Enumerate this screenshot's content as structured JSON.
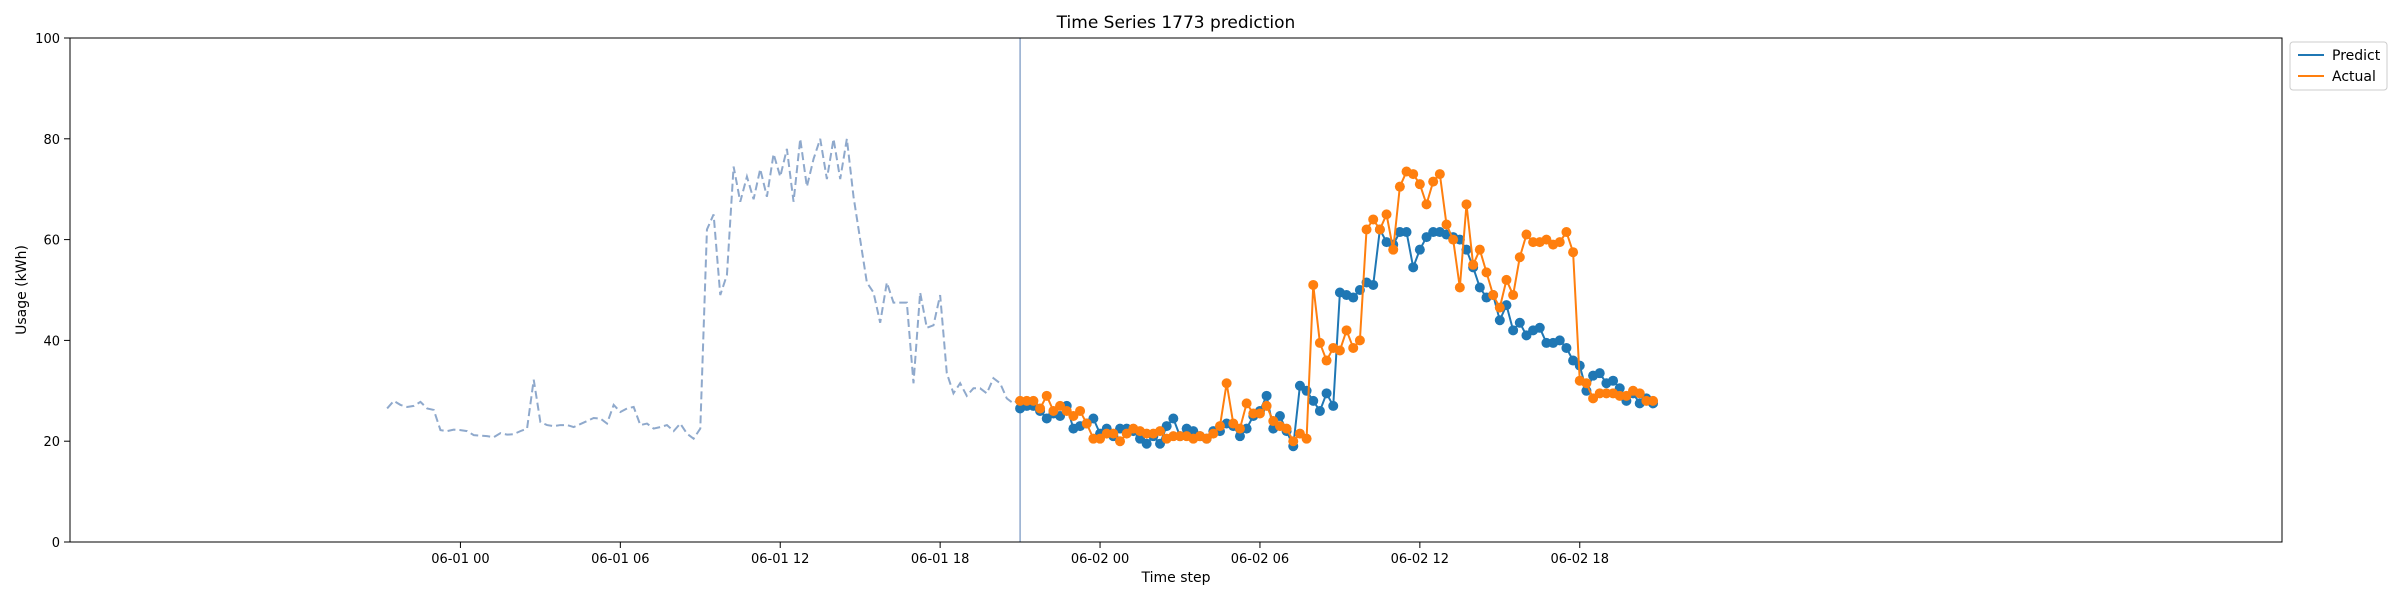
{
  "chart_data": {
    "type": "line",
    "title": "Time Series 1773 prediction",
    "xlabel": "Time step",
    "ylabel": "Usage (kWh)",
    "ylim": [
      0,
      100
    ],
    "yticks": [
      0,
      20,
      40,
      60,
      80,
      100
    ],
    "x_axis": {
      "type": "time",
      "step_hours": 0.25,
      "range_hours": [
        -14.65,
        68.35
      ],
      "tick_hours": [
        0,
        6,
        12,
        18,
        24,
        30,
        36,
        42
      ],
      "tick_labels": [
        "06-01 00",
        "06-01 06",
        "06-01 12",
        "06-01 18",
        "06-02 00",
        "06-02 06",
        "06-02 12",
        "06-02 18"
      ]
    },
    "grid": false,
    "legend_position": "outside-top-right",
    "forecast_start_hour": 21.0,
    "colors": {
      "history": "#8fa9cc",
      "predict": "#1f77b4",
      "actual": "#ff7f0e",
      "divider": "#8fa9cc"
    },
    "history": {
      "start_hour": -2.75,
      "values": [
        26.5,
        28,
        27.2,
        26.8,
        27,
        27.8,
        26.5,
        26.2,
        22.2,
        22,
        22.3,
        22.2,
        22,
        21.2,
        21.1,
        21,
        20.8,
        21.6,
        21.3,
        21.4,
        22,
        22.5,
        32.2,
        23.8,
        23.2,
        23,
        23.2,
        23.2,
        22.8,
        23.4,
        24,
        24.6,
        24.5,
        23.5,
        27.2,
        25.8,
        26.5,
        26.8,
        23.2,
        23.5,
        22.5,
        22.8,
        23.2,
        22,
        23.5,
        21.5,
        20.5,
        22.5,
        62,
        65,
        49,
        53,
        74.5,
        67.5,
        72.5,
        68,
        74,
        68.5,
        77,
        72.5,
        78,
        67.5,
        80,
        70.5,
        76,
        80,
        72,
        80,
        72,
        80,
        68.5,
        60,
        51.5,
        49.5,
        43.5,
        51.5,
        47.5,
        47.5,
        47.5,
        31.5,
        49.5,
        42.5,
        43,
        49,
        33.5,
        29.5,
        31.5,
        29,
        30.5,
        30.5,
        29.5,
        32.5,
        31.5,
        28.5,
        27.5,
        28.5
      ]
    },
    "series": [
      {
        "name": "Predict",
        "start_hour": 21.0,
        "values": [
          26.5,
          27,
          27,
          26,
          24.5,
          25.5,
          25,
          27,
          22.5,
          23,
          23.5,
          24.5,
          21.5,
          22.5,
          21,
          22.5,
          22.5,
          22,
          20.5,
          19.5,
          21,
          19.5,
          23,
          24.5,
          21,
          22.5,
          22,
          21,
          20.5,
          22,
          22,
          23.5,
          23,
          21,
          22.5,
          25,
          26,
          29,
          22.5,
          25,
          22,
          19,
          31,
          30,
          28,
          26,
          29.5,
          27,
          49.5,
          49,
          48.5,
          50,
          51.5,
          51,
          62,
          59.5,
          59,
          61.5,
          61.5,
          54.5,
          58,
          60.5,
          61.5,
          61.5,
          61,
          60.5,
          60,
          58,
          54.5,
          50.5,
          48.5,
          49,
          44,
          47,
          42,
          43.5,
          41,
          42,
          42.5,
          39.5,
          39.5,
          40,
          38.5,
          36,
          35,
          30,
          33,
          33.5,
          31.5,
          32,
          30.5,
          28,
          29.5,
          27.5,
          28.5,
          27.5
        ]
      },
      {
        "name": "Actual",
        "start_hour": 21.0,
        "values": [
          28,
          28,
          28,
          26.5,
          29,
          26,
          27,
          26,
          25,
          26,
          23.5,
          20.5,
          20.5,
          21.5,
          21.5,
          20,
          21.5,
          22.5,
          22,
          21.5,
          21.5,
          22,
          20.5,
          21,
          21,
          21,
          20.5,
          21,
          20.5,
          21.5,
          23,
          31.5,
          23.5,
          22.5,
          27.5,
          25.5,
          25.5,
          27,
          24,
          23,
          22.5,
          20,
          21.5,
          20.5,
          51,
          39.5,
          36,
          38.5,
          38,
          42,
          38.5,
          40,
          62,
          64,
          62,
          65,
          58,
          70.5,
          73.5,
          73,
          71,
          67,
          71.5,
          73,
          63,
          60,
          50.5,
          67,
          55,
          58,
          53.5,
          49,
          46.5,
          52,
          49,
          56.5,
          61,
          59.5,
          59.5,
          60,
          59,
          59.5,
          61.5,
          57.5,
          32,
          31.5,
          28.5,
          29.5,
          29.5,
          29.5,
          29,
          29,
          30,
          29.5,
          28,
          28
        ]
      }
    ]
  }
}
